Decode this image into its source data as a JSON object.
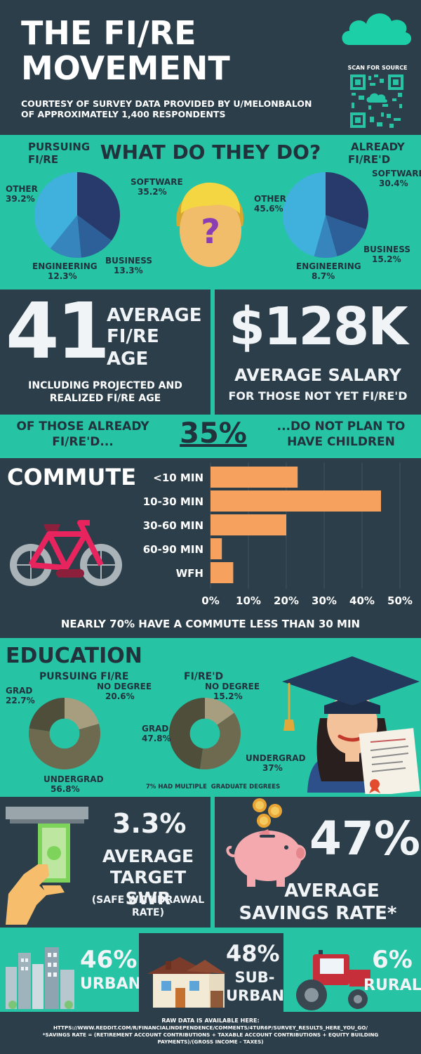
{
  "header": {
    "title_line1": "THE FI/RE",
    "title_line2": "MOVEMENT",
    "subtitle_line1": "COURTESY OF SURVEY DATA PROVIDED BY U/MELONBALON",
    "subtitle_line2": "OF APPROXIMATELY 1,400 RESPONDENTS",
    "scan_label": "SCAN FOR SOURCE"
  },
  "jobs": {
    "heading": "WHAT DO THEY DO?",
    "pursuing_label_1": "PURSUING",
    "pursuing_label_2": "FI/RE",
    "already_label_1": "ALREADY",
    "already_label_2": "FI/RE'D",
    "question_mark": "?"
  },
  "stats": {
    "age_value": "41",
    "age_label_1": "AVERAGE",
    "age_label_2": "FI/RE",
    "age_label_3": "AGE",
    "age_note_1": "INCLUDING PROJECTED AND",
    "age_note_2": "REALIZED FI/RE AGE",
    "salary_value": "$128K",
    "salary_label": "AVERAGE SALARY",
    "salary_note": "FOR THOSE NOT YET FI/RE'D"
  },
  "children": {
    "left_1": "OF THOSE ALREADY",
    "left_2": "FI/RE'D...",
    "value": "35%",
    "right_1": "...DO NOT PLAN TO",
    "right_2": "HAVE CHILDREN"
  },
  "commute": {
    "heading": "COMMUTE",
    "note": "NEARLY 70% HAVE A COMMUTE LESS THAN 30 MIN"
  },
  "education": {
    "heading": "EDUCATION",
    "pursuing_title": "PURSUING FI/RE",
    "fired_title": "FI/RE'D",
    "footnote": "7% HAD MULTIPLE  GRADUATE DEGREES"
  },
  "swr": {
    "value": "3.3%",
    "label_1": "AVERAGE",
    "label_2": "TARGET SWR",
    "note_1": "(SAFE WITHDRAWAL",
    "note_2": "RATE)"
  },
  "savings": {
    "value": "47%",
    "label_1": "AVERAGE",
    "label_2": "SAVINGS RATE*"
  },
  "location": {
    "urban_value": "46%",
    "urban_label": "URBAN",
    "suburban_value": "48%",
    "suburban_label_1": "SUB-",
    "suburban_label_2": "URBAN",
    "rural_value": "6%",
    "rural_label": "RURAL"
  },
  "footer": {
    "line1": "RAW DATA IS AVAILABLE HERE:",
    "line2": "HTTPS://WWW.REDDIT.COM/R/FINANCIALINDEPENDENCE/COMMENTS/4TUR6P/SURVEY_RESULTS_HERE_YOU_GO/",
    "line3": "*SAVINGS RATE = (RETIREMENT ACCOUNT CONTRIBUTIONS + TAXABLE ACCOUNT CONTRIBUTIONS + EQUITY BUILDING",
    "line4": "PAYMENTS)/(GROSS INCOME - TAXES)"
  },
  "colors": {
    "dark": "#2c3e4a",
    "teal": "#26c4a4",
    "bar": "#f7a15f",
    "pie_software": "#273a6b",
    "pie_business": "#2d5f99",
    "pie_engineering": "#3785bd",
    "pie_other": "#3fb1dc",
    "donut_grad": "#4f4e3a",
    "donut_undergrad": "#6d6a50",
    "donut_nodegree": "#a79e80"
  },
  "chart_data": [
    {
      "id": "pie-pursuing",
      "type": "pie",
      "title": "PURSUING FI/RE",
      "categories": [
        "SOFTWARE",
        "BUSINESS",
        "ENGINEERING",
        "OTHER"
      ],
      "values": [
        35.2,
        13.3,
        12.3,
        39.2
      ],
      "labels": [
        "35.2%",
        "13.3%",
        "12.3%",
        "39.2%"
      ]
    },
    {
      "id": "pie-already",
      "type": "pie",
      "title": "ALREADY FI/RE'D",
      "categories": [
        "SOFTWARE",
        "BUSINESS",
        "ENGINEERING",
        "OTHER"
      ],
      "values": [
        30.4,
        15.2,
        8.7,
        45.6
      ],
      "labels": [
        "30.4%",
        "15.2%",
        "8.7%",
        "45.6%"
      ]
    },
    {
      "id": "commute-bar",
      "type": "bar",
      "orientation": "horizontal",
      "title": "COMMUTE",
      "categories": [
        "<10 MIN",
        "10-30 MIN",
        "30-60 MIN",
        "60-90 MIN",
        "WFH"
      ],
      "values": [
        23,
        45,
        20,
        3,
        6
      ],
      "xlim": [
        0,
        50
      ],
      "xticks": [
        "0%",
        "10%",
        "20%",
        "30%",
        "40%",
        "50%"
      ],
      "grid": true
    },
    {
      "id": "donut-pursuing",
      "type": "pie",
      "title": "PURSUING FI/RE",
      "categories": [
        "GRAD",
        "NO DEGREE",
        "UNDERGRAD"
      ],
      "values": [
        22.7,
        20.6,
        56.8
      ],
      "labels": [
        "22.7%",
        "20.6%",
        "56.8%"
      ]
    },
    {
      "id": "donut-fired",
      "type": "pie",
      "title": "FI/RE'D",
      "categories": [
        "GRAD",
        "NO DEGREE",
        "UNDERGRAD"
      ],
      "values": [
        47.8,
        15.2,
        37
      ],
      "labels": [
        "47.8%",
        "15.2%",
        "37%"
      ]
    }
  ]
}
